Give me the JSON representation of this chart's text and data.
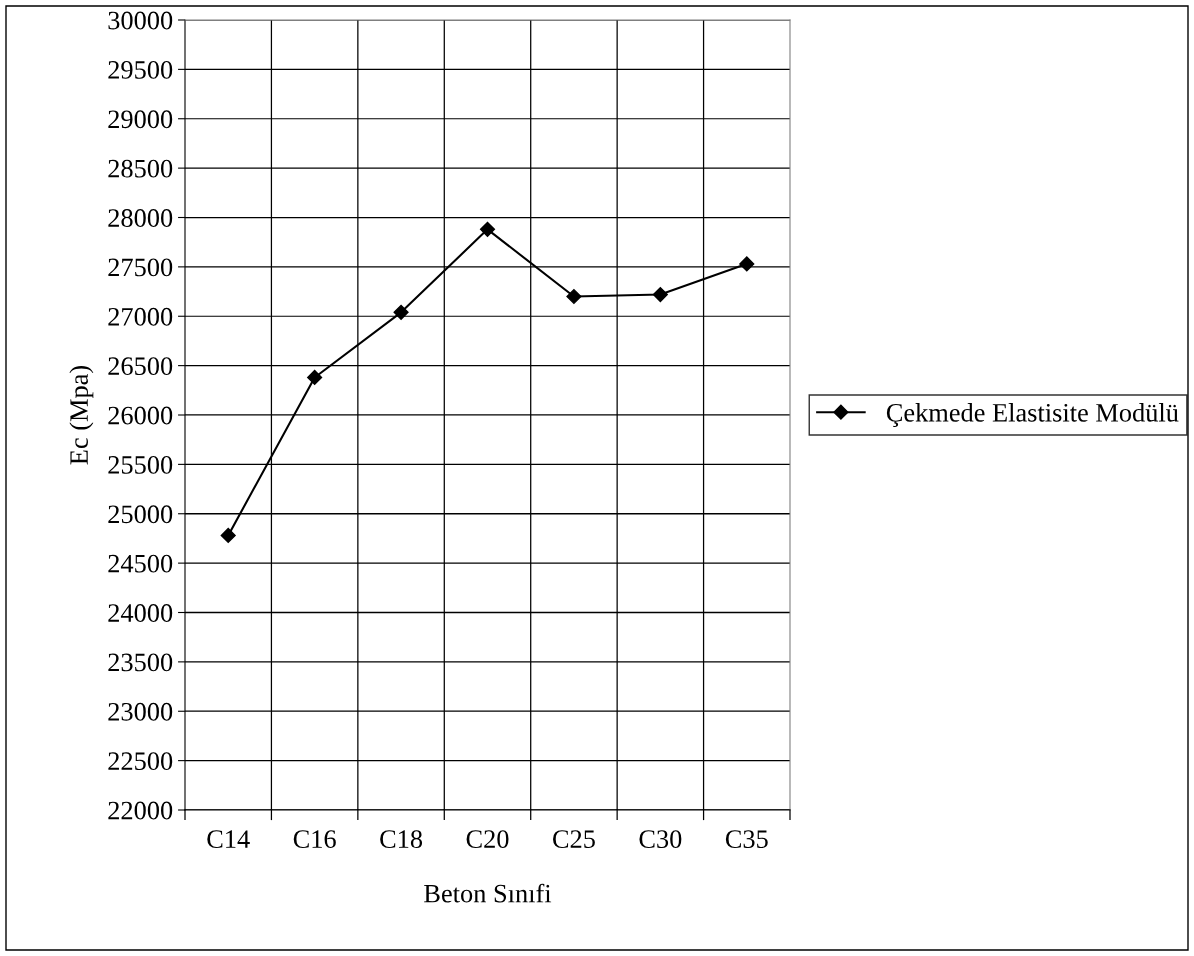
{
  "chart_data": {
    "type": "line",
    "xlabel": "Beton Sınıfi",
    "ylabel": "Ec (Mpa)",
    "categories": [
      "C14",
      "C16",
      "C18",
      "C20",
      "C25",
      "C30",
      "C35"
    ],
    "series": [
      {
        "name": "Çekmede Elastisite Modülü",
        "color": "#000000",
        "values": [
          24780,
          26380,
          27040,
          27880,
          27200,
          27220,
          27530
        ]
      }
    ],
    "ylim": [
      22000,
      30000
    ],
    "yticks": [
      22000,
      22500,
      23000,
      23500,
      24000,
      24500,
      25000,
      25500,
      26000,
      26500,
      27000,
      27500,
      28000,
      28500,
      29000,
      29500,
      30000
    ],
    "grid": true,
    "legend": "right",
    "marker": "diamond",
    "line_style": "solid"
  }
}
